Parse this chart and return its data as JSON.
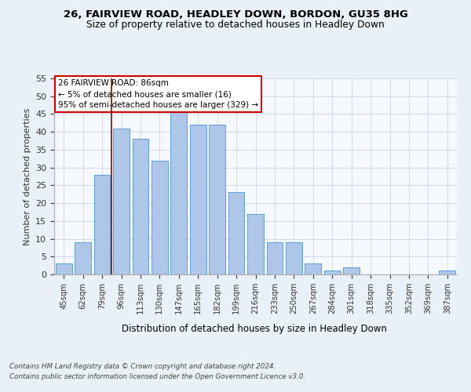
{
  "title1": "26, FAIRVIEW ROAD, HEADLEY DOWN, BORDON, GU35 8HG",
  "title2": "Size of property relative to detached houses in Headley Down",
  "xlabel": "Distribution of detached houses by size in Headley Down",
  "ylabel": "Number of detached properties",
  "categories": [
    "45sqm",
    "62sqm",
    "79sqm",
    "96sqm",
    "113sqm",
    "130sqm",
    "147sqm",
    "165sqm",
    "182sqm",
    "199sqm",
    "216sqm",
    "233sqm",
    "250sqm",
    "267sqm",
    "284sqm",
    "301sqm",
    "318sqm",
    "335sqm",
    "352sqm",
    "369sqm",
    "387sqm"
  ],
  "values": [
    3,
    9,
    28,
    41,
    38,
    32,
    46,
    42,
    42,
    23,
    17,
    9,
    9,
    3,
    1,
    2,
    0,
    0,
    0,
    0,
    1
  ],
  "bar_color": "#aec6e8",
  "bar_edge_color": "#5a9fd4",
  "subject_line_color": "#8b0000",
  "annotation_text": "26 FAIRVIEW ROAD: 86sqm\n← 5% of detached houses are smaller (16)\n95% of semi-detached houses are larger (329) →",
  "annotation_box_color": "#ffffff",
  "annotation_box_edge": "#cc0000",
  "ylim": [
    0,
    55
  ],
  "yticks": [
    0,
    5,
    10,
    15,
    20,
    25,
    30,
    35,
    40,
    45,
    50,
    55
  ],
  "footer1": "Contains HM Land Registry data © Crown copyright and database right 2024.",
  "footer2": "Contains public sector information licensed under the Open Government Licence v3.0.",
  "bg_color": "#eaf0f8",
  "plot_bg_color": "#f5f8fd",
  "grid_color": "#d0d8e8"
}
